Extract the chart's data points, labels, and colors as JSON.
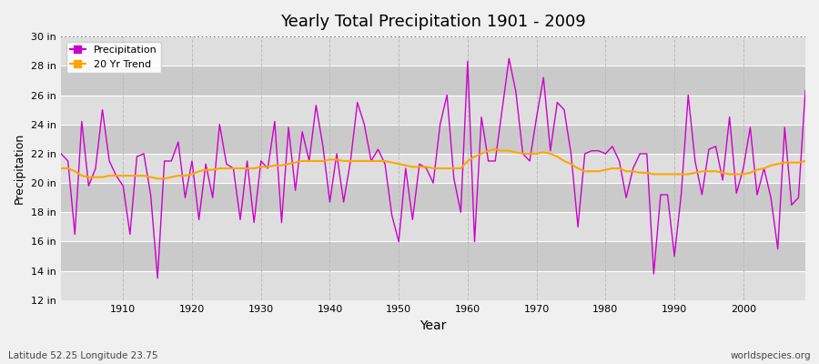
{
  "title": "Yearly Total Precipitation 1901 - 2009",
  "xlabel": "Year",
  "ylabel": "Precipitation",
  "subtitle_left": "Latitude 52.25 Longitude 23.75",
  "subtitle_right": "worldspecies.org",
  "ylim": [
    12,
    30
  ],
  "ytick_labels": [
    "12 in",
    "14 in",
    "16 in",
    "18 in",
    "20 in",
    "22 in",
    "24 in",
    "26 in",
    "28 in",
    "30 in"
  ],
  "ytick_values": [
    12,
    14,
    16,
    18,
    20,
    22,
    24,
    26,
    28,
    30
  ],
  "xlim": [
    1901,
    2009
  ],
  "xtick_values": [
    1910,
    1920,
    1930,
    1940,
    1950,
    1960,
    1970,
    1980,
    1990,
    2000
  ],
  "precip_color": "#CC00CC",
  "trend_color": "#FFA500",
  "fig_bg_color": "#F0F0F0",
  "plot_bg_color": "#E0E0E0",
  "band_color_1": "#DEDEDE",
  "band_color_2": "#CACACA",
  "grid_h_color": "#FFFFFF",
  "grid_v_color": "#BBBBBB",
  "years": [
    1901,
    1902,
    1903,
    1904,
    1905,
    1906,
    1907,
    1908,
    1909,
    1910,
    1911,
    1912,
    1913,
    1914,
    1915,
    1916,
    1917,
    1918,
    1919,
    1920,
    1921,
    1922,
    1923,
    1924,
    1925,
    1926,
    1927,
    1928,
    1929,
    1930,
    1931,
    1932,
    1933,
    1934,
    1935,
    1936,
    1937,
    1938,
    1939,
    1940,
    1941,
    1942,
    1943,
    1944,
    1945,
    1946,
    1947,
    1948,
    1949,
    1950,
    1951,
    1952,
    1953,
    1954,
    1955,
    1956,
    1957,
    1958,
    1959,
    1960,
    1961,
    1962,
    1963,
    1964,
    1965,
    1966,
    1967,
    1968,
    1969,
    1970,
    1971,
    1972,
    1973,
    1974,
    1975,
    1976,
    1977,
    1978,
    1979,
    1980,
    1981,
    1982,
    1983,
    1984,
    1985,
    1986,
    1987,
    1988,
    1989,
    1990,
    1991,
    1992,
    1993,
    1994,
    1995,
    1996,
    1997,
    1998,
    1999,
    2000,
    2001,
    2002,
    2003,
    2004,
    2005,
    2006,
    2007,
    2008,
    2009
  ],
  "precip": [
    22.0,
    21.5,
    16.5,
    24.2,
    19.8,
    21.0,
    25.0,
    21.5,
    20.5,
    19.8,
    16.5,
    21.8,
    22.0,
    19.2,
    13.5,
    21.5,
    21.5,
    22.8,
    19.0,
    21.5,
    17.5,
    21.3,
    19.0,
    24.0,
    21.3,
    21.0,
    17.5,
    21.5,
    17.3,
    21.5,
    21.0,
    24.2,
    17.3,
    23.8,
    19.5,
    23.5,
    21.5,
    25.3,
    22.5,
    18.7,
    22.0,
    18.7,
    21.5,
    25.5,
    24.0,
    21.5,
    22.3,
    21.3,
    17.8,
    16.0,
    21.0,
    17.5,
    21.3,
    21.0,
    20.0,
    24.0,
    26.0,
    20.3,
    18.0,
    28.3,
    16.0,
    24.5,
    21.5,
    21.5,
    25.0,
    28.5,
    26.2,
    22.0,
    21.5,
    24.5,
    27.2,
    22.2,
    25.5,
    25.0,
    22.0,
    17.0,
    22.0,
    22.2,
    22.2,
    22.0,
    22.5,
    21.5,
    19.0,
    21.0,
    22.0,
    22.0,
    13.8,
    19.2,
    19.2,
    15.0,
    19.3,
    26.0,
    21.5,
    19.2,
    22.3,
    22.5,
    20.2,
    24.5,
    19.3,
    21.0,
    23.8,
    19.2,
    21.0,
    19.0,
    15.5,
    23.8,
    18.5,
    19.0,
    26.3
  ],
  "trend": [
    21.0,
    21.0,
    20.8,
    20.5,
    20.4,
    20.4,
    20.4,
    20.5,
    20.5,
    20.5,
    20.5,
    20.5,
    20.5,
    20.4,
    20.3,
    20.3,
    20.4,
    20.5,
    20.5,
    20.6,
    20.8,
    20.9,
    20.9,
    21.0,
    21.0,
    21.0,
    21.0,
    21.0,
    21.0,
    21.1,
    21.1,
    21.2,
    21.2,
    21.3,
    21.4,
    21.5,
    21.5,
    21.5,
    21.5,
    21.6,
    21.6,
    21.5,
    21.5,
    21.5,
    21.5,
    21.5,
    21.5,
    21.5,
    21.4,
    21.3,
    21.2,
    21.1,
    21.1,
    21.1,
    21.0,
    21.0,
    21.0,
    21.0,
    21.0,
    21.5,
    21.8,
    22.0,
    22.2,
    22.3,
    22.2,
    22.2,
    22.1,
    22.0,
    22.0,
    22.0,
    22.1,
    22.0,
    21.8,
    21.5,
    21.3,
    21.0,
    20.8,
    20.8,
    20.8,
    20.9,
    21.0,
    21.0,
    20.8,
    20.8,
    20.7,
    20.7,
    20.6,
    20.6,
    20.6,
    20.6,
    20.6,
    20.6,
    20.7,
    20.8,
    20.8,
    20.8,
    20.7,
    20.6,
    20.6,
    20.6,
    20.7,
    20.9,
    21.0,
    21.2,
    21.3,
    21.4,
    21.4,
    21.4,
    21.5
  ]
}
